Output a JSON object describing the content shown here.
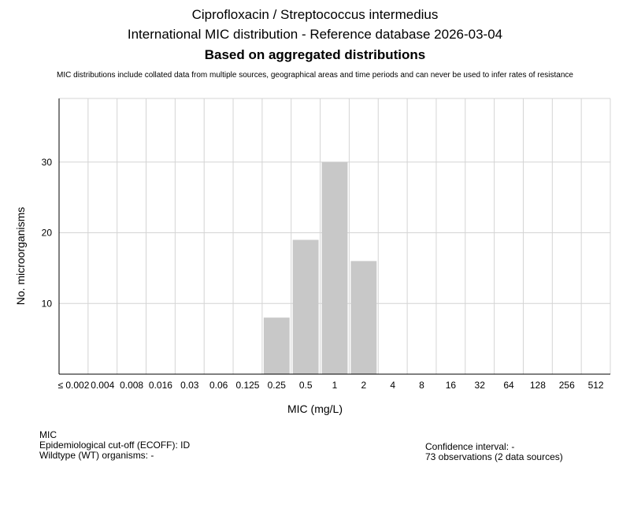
{
  "chart_data": {
    "type": "bar",
    "title": "Ciprofloxacin / Streptococcus intermedius",
    "subtitle": "International MIC distribution - Reference database 2026-03-04",
    "subtitle2": "Based on aggregated distributions",
    "note": "MIC distributions include collated data from multiple sources, geographical areas and time periods and can never be used to infer rates of resistance",
    "xlabel": "MIC (mg/L)",
    "ylabel": "No. microorganisms",
    "categories": [
      "≤ 0.002",
      "0.004",
      "0.008",
      "0.016",
      "0.03",
      "0.06",
      "0.125",
      "0.25",
      "0.5",
      "1",
      "2",
      "4",
      "8",
      "16",
      "32",
      "64",
      "128",
      "256",
      "512"
    ],
    "values": [
      0,
      0,
      0,
      0,
      0,
      0,
      0,
      8,
      19,
      30,
      16,
      0,
      0,
      0,
      0,
      0,
      0,
      0,
      0
    ],
    "ylim": [
      0,
      39
    ],
    "yticks": [
      10,
      20,
      30
    ],
    "grid": true,
    "bar_color": "#c8c8c8",
    "grid_color": "#d4d4d4"
  },
  "footer": {
    "left_line1": "MIC",
    "left_line2": "Epidemiological cut-off (ECOFF): ID",
    "left_line3": "Wildtype (WT) organisms:  -",
    "right_line1": "Confidence interval: -",
    "right_line2": "73 observations (2 data sources)"
  }
}
